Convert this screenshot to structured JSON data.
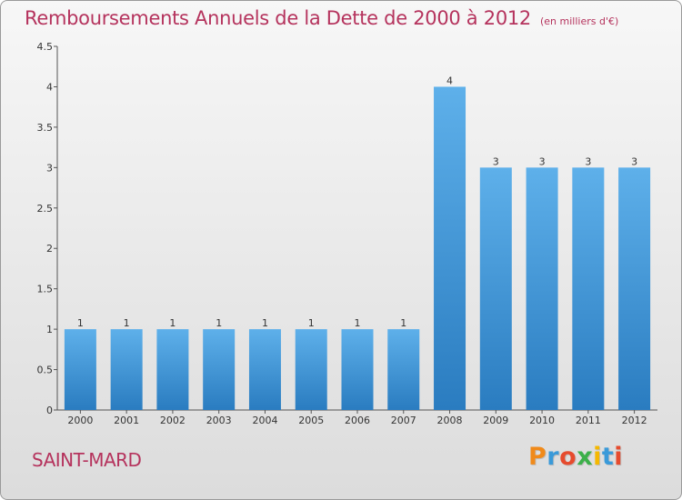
{
  "header": {
    "title": "Remboursements Annuels de la Dette de 2000 à 2012",
    "unit": "(en milliers d'€)"
  },
  "footer": {
    "city": "SAINT-MARD",
    "logo_letters": [
      "P",
      "r",
      "o",
      "x",
      "i",
      "t",
      "i"
    ],
    "logo_colors": [
      "#f08a1a",
      "#3a9ad9",
      "#e64b2e",
      "#3cb04a",
      "#f5b800",
      "#3a9ad9",
      "#e64b2e"
    ]
  },
  "colors": {
    "bar_top": "#5eb0ea",
    "bar_bottom": "#2a7cc0",
    "title": "#b5335d"
  },
  "chart_data": {
    "type": "bar",
    "title": "Remboursements Annuels de la Dette de 2000 à 2012",
    "xlabel": "",
    "ylabel": "",
    "categories": [
      "2000",
      "2001",
      "2002",
      "2003",
      "2004",
      "2005",
      "2006",
      "2007",
      "2008",
      "2009",
      "2010",
      "2011",
      "2012"
    ],
    "values": [
      1,
      1,
      1,
      1,
      1,
      1,
      1,
      1,
      4,
      3,
      3,
      3,
      3
    ],
    "data_labels": [
      "1",
      "1",
      "1",
      "1",
      "1",
      "1",
      "1",
      "1",
      "4",
      "3",
      "3",
      "3",
      "3"
    ],
    "ylim": [
      0,
      4.5
    ],
    "yticks": [
      0,
      0.5,
      1,
      1.5,
      2,
      2.5,
      3,
      3.5,
      4,
      4.5
    ],
    "ytick_labels": [
      "0",
      "0.5",
      "1",
      "1.5",
      "2",
      "2.5",
      "3",
      "3.5",
      "4",
      "4.5"
    ],
    "grid": false,
    "legend": "none"
  }
}
